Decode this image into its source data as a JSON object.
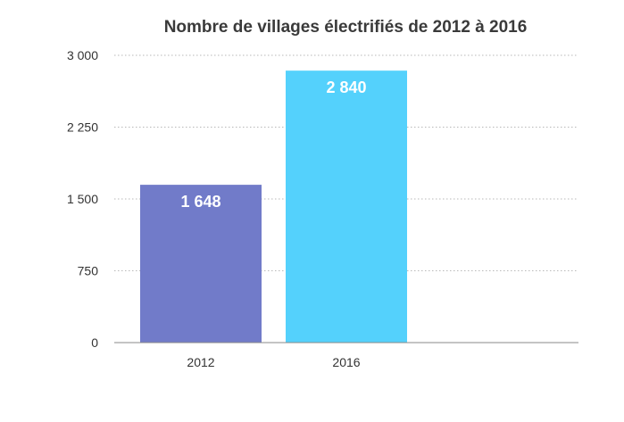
{
  "chart_data": {
    "type": "bar",
    "title": "Nombre de villages électrifiés de 2012 à 2016",
    "xlabel": "",
    "ylabel": "",
    "categories": [
      "2012",
      "2016"
    ],
    "values": [
      1648,
      2840
    ],
    "value_labels": [
      "1 648",
      "2 840"
    ],
    "colors": [
      "#717bc9",
      "#54d1fc"
    ],
    "ylim": [
      0,
      3000
    ],
    "yticks": [
      0,
      750,
      1500,
      2250,
      3000
    ],
    "ytick_labels": [
      "0",
      "750",
      "1 500",
      "2 250",
      "3 000"
    ],
    "grid": true,
    "legend": "none"
  }
}
